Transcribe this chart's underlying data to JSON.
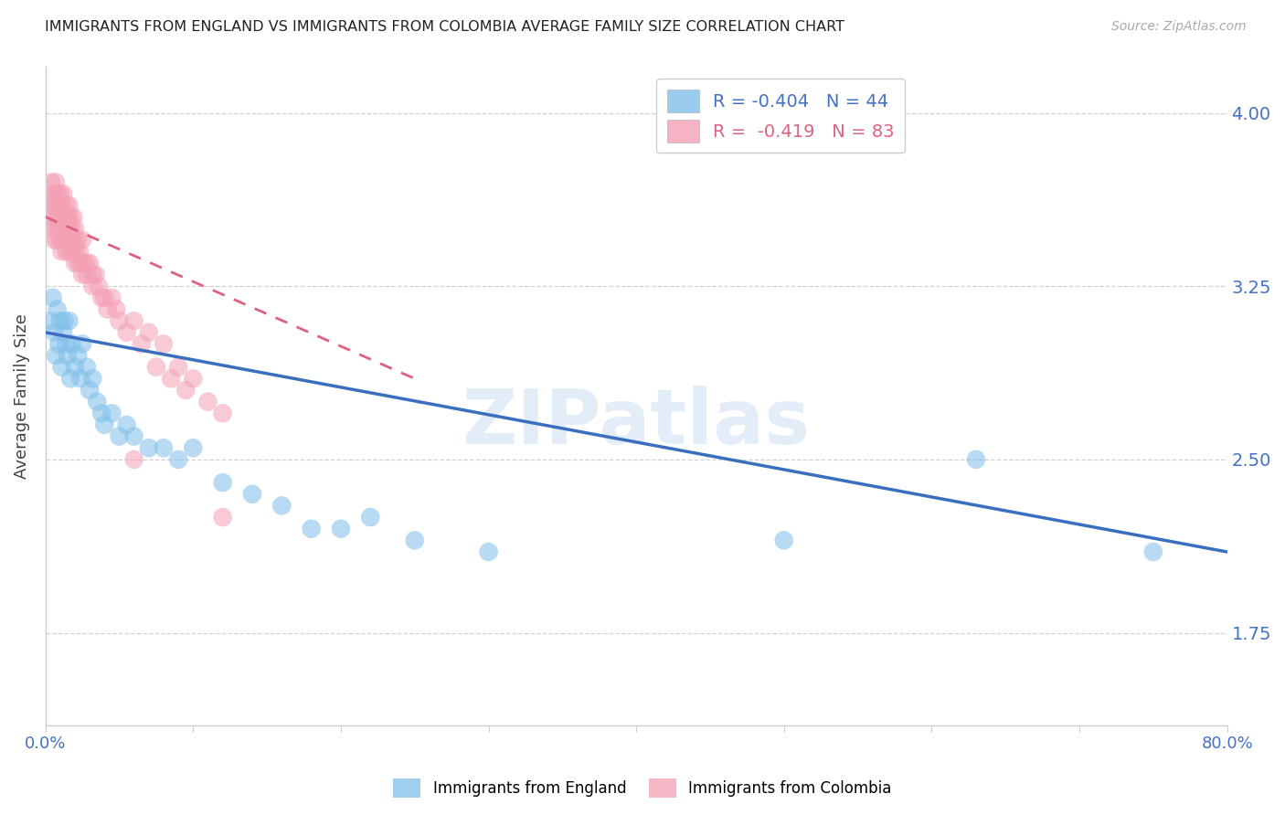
{
  "title": "IMMIGRANTS FROM ENGLAND VS IMMIGRANTS FROM COLOMBIA AVERAGE FAMILY SIZE CORRELATION CHART",
  "source": "Source: ZipAtlas.com",
  "ylabel": "Average Family Size",
  "yticks": [
    1.75,
    2.5,
    3.25,
    4.0
  ],
  "xmin": 0.0,
  "xmax": 0.8,
  "ymin": 1.35,
  "ymax": 4.2,
  "watermark": "ZIPatlas",
  "england_color": "#7fbfea",
  "colombia_color": "#f4a0b5",
  "england_line_color": "#3a6fbf",
  "colombia_line_color": "#e06080",
  "england_R": -0.404,
  "england_N": 44,
  "colombia_R": -0.419,
  "colombia_N": 83,
  "england_scatter_x": [
    0.003,
    0.005,
    0.006,
    0.007,
    0.008,
    0.009,
    0.01,
    0.011,
    0.012,
    0.013,
    0.014,
    0.015,
    0.016,
    0.017,
    0.018,
    0.02,
    0.022,
    0.024,
    0.025,
    0.028,
    0.03,
    0.032,
    0.035,
    0.038,
    0.04,
    0.045,
    0.05,
    0.055,
    0.06,
    0.07,
    0.08,
    0.09,
    0.1,
    0.12,
    0.14,
    0.16,
    0.18,
    0.2,
    0.22,
    0.25,
    0.3,
    0.5,
    0.63,
    0.75
  ],
  "england_scatter_y": [
    3.1,
    3.2,
    3.05,
    2.95,
    3.15,
    3.0,
    3.1,
    2.9,
    3.05,
    3.1,
    3.0,
    2.95,
    3.1,
    2.85,
    3.0,
    2.9,
    2.95,
    2.85,
    3.0,
    2.9,
    2.8,
    2.85,
    2.75,
    2.7,
    2.65,
    2.7,
    2.6,
    2.65,
    2.6,
    2.55,
    2.55,
    2.5,
    2.55,
    2.4,
    2.35,
    2.3,
    2.2,
    2.2,
    2.25,
    2.15,
    2.1,
    2.15,
    2.5,
    2.1
  ],
  "colombia_scatter_x": [
    0.003,
    0.004,
    0.005,
    0.006,
    0.006,
    0.007,
    0.007,
    0.008,
    0.008,
    0.009,
    0.009,
    0.01,
    0.01,
    0.011,
    0.011,
    0.012,
    0.012,
    0.013,
    0.013,
    0.014,
    0.014,
    0.015,
    0.015,
    0.016,
    0.016,
    0.017,
    0.018,
    0.018,
    0.019,
    0.02,
    0.02,
    0.021,
    0.022,
    0.023,
    0.024,
    0.025,
    0.026,
    0.028,
    0.03,
    0.032,
    0.034,
    0.036,
    0.038,
    0.04,
    0.042,
    0.045,
    0.048,
    0.05,
    0.055,
    0.06,
    0.065,
    0.07,
    0.075,
    0.08,
    0.085,
    0.09,
    0.095,
    0.1,
    0.11,
    0.12,
    0.004,
    0.005,
    0.006,
    0.007,
    0.008,
    0.009,
    0.01,
    0.011,
    0.012,
    0.013,
    0.014,
    0.015,
    0.016,
    0.017,
    0.018,
    0.019,
    0.02,
    0.022,
    0.025,
    0.028,
    0.032,
    0.06,
    0.12
  ],
  "colombia_scatter_y": [
    3.5,
    3.55,
    3.6,
    3.45,
    3.65,
    3.5,
    3.55,
    3.45,
    3.6,
    3.5,
    3.55,
    3.45,
    3.55,
    3.5,
    3.4,
    3.5,
    3.45,
    3.5,
    3.45,
    3.4,
    3.5,
    3.45,
    3.55,
    3.4,
    3.5,
    3.45,
    3.4,
    3.45,
    3.4,
    3.45,
    3.35,
    3.4,
    3.35,
    3.4,
    3.35,
    3.3,
    3.35,
    3.3,
    3.35,
    3.25,
    3.3,
    3.25,
    3.2,
    3.2,
    3.15,
    3.2,
    3.15,
    3.1,
    3.05,
    3.1,
    3.0,
    3.05,
    2.9,
    3.0,
    2.85,
    2.9,
    2.8,
    2.85,
    2.75,
    2.7,
    3.7,
    3.65,
    3.6,
    3.7,
    3.65,
    3.6,
    3.65,
    3.6,
    3.65,
    3.55,
    3.6,
    3.55,
    3.6,
    3.55,
    3.5,
    3.55,
    3.5,
    3.45,
    3.45,
    3.35,
    3.3,
    2.5,
    2.25
  ]
}
